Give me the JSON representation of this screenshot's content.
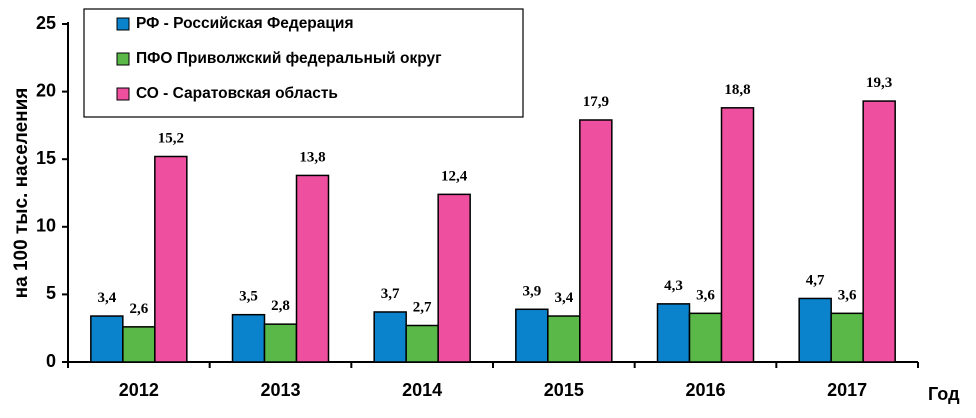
{
  "chart_data": {
    "type": "bar",
    "categories": [
      "2012",
      "2013",
      "2014",
      "2015",
      "2016",
      "2017"
    ],
    "series": [
      {
        "name": "РФ - Российская Федерация",
        "values": [
          3.4,
          3.5,
          3.7,
          3.9,
          4.3,
          4.7
        ],
        "labels": [
          "3,4",
          "3,5",
          "3,7",
          "3,9",
          "4,3",
          "4,7"
        ],
        "color": "#0a82cc"
      },
      {
        "name": "ПФО Приволжский федеральный округ",
        "values": [
          2.6,
          2.8,
          2.7,
          3.4,
          3.6,
          3.6
        ],
        "labels": [
          "2,6",
          "2,8",
          "2,7",
          "3,4",
          "3,6",
          "3,6"
        ],
        "color": "#5ab848"
      },
      {
        "name": "СО - Саратовская область",
        "values": [
          15.2,
          13.8,
          12.4,
          17.9,
          18.8,
          19.3
        ],
        "labels": [
          "15,2",
          "13,8",
          "12,4",
          "17,9",
          "18,8",
          "19,3"
        ],
        "color": "#ee4f9f"
      }
    ],
    "xlabel": "Год",
    "ylabel": "на 100 тыс. населения",
    "ylim": [
      0,
      25
    ],
    "yticks": [
      0,
      5,
      10,
      15,
      20,
      25
    ],
    "legend": "top-left",
    "grid": false
  }
}
